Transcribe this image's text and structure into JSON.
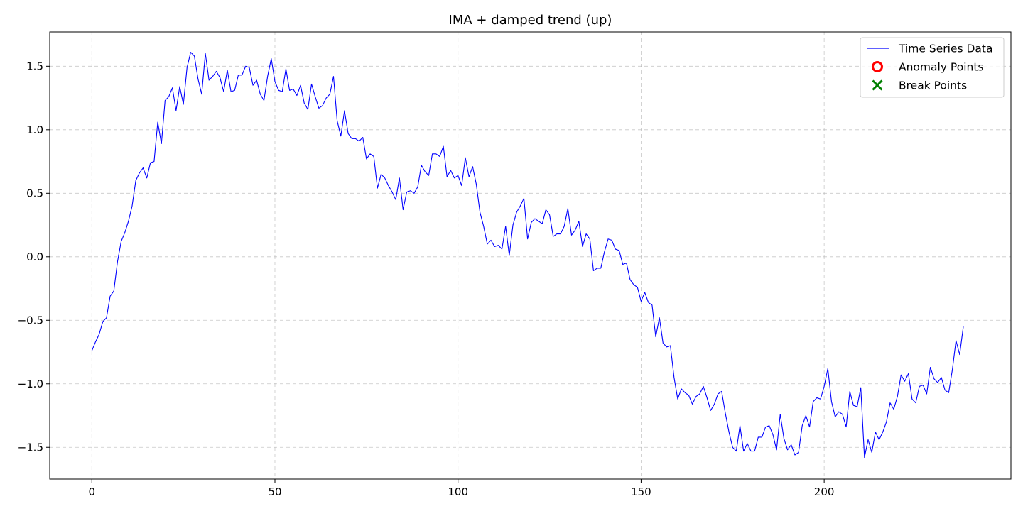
{
  "chart_data": {
    "type": "line",
    "title": "IMA + damped trend (up)",
    "xlabel": "",
    "ylabel": "",
    "xlim": [
      -11.5,
      251
    ],
    "ylim": [
      -1.75,
      1.77
    ],
    "xticks": [
      0,
      50,
      100,
      150,
      200
    ],
    "xtick_labels": [
      "0",
      "50",
      "100",
      "150",
      "200"
    ],
    "yticks": [
      -1.5,
      -1.0,
      -0.5,
      0.0,
      0.5,
      1.0,
      1.5
    ],
    "ytick_labels": [
      "−1.5",
      "−1.0",
      "−0.5",
      "0.0",
      "0.5",
      "1.0",
      "1.5"
    ],
    "grid": true,
    "legend": {
      "position": "upper right",
      "entries": [
        {
          "label": "Time Series Data",
          "marker": "line",
          "color": "#0000ff"
        },
        {
          "label": "Anomaly Points",
          "marker": "circle",
          "color": "#ff0000"
        },
        {
          "label": "Break Points",
          "marker": "x",
          "color": "#008000"
        }
      ]
    },
    "series": [
      {
        "name": "Time Series Data",
        "color": "#0000ff",
        "x_start": 0,
        "x_step": 1,
        "values": [
          -0.74,
          -0.67,
          -0.61,
          -0.51,
          -0.48,
          -0.31,
          -0.27,
          -0.04,
          0.12,
          0.19,
          0.28,
          0.4,
          0.6,
          0.66,
          0.7,
          0.62,
          0.74,
          0.75,
          1.06,
          0.89,
          1.23,
          1.26,
          1.33,
          1.15,
          1.34,
          1.2,
          1.49,
          1.61,
          1.58,
          1.4,
          1.28,
          1.6,
          1.39,
          1.42,
          1.46,
          1.41,
          1.3,
          1.47,
          1.3,
          1.31,
          1.43,
          1.43,
          1.5,
          1.49,
          1.35,
          1.39,
          1.28,
          1.23,
          1.42,
          1.56,
          1.38,
          1.31,
          1.3,
          1.48,
          1.31,
          1.32,
          1.27,
          1.35,
          1.21,
          1.16,
          1.36,
          1.26,
          1.17,
          1.19,
          1.25,
          1.28,
          1.42,
          1.07,
          0.95,
          1.15,
          0.97,
          0.93,
          0.93,
          0.91,
          0.94,
          0.77,
          0.81,
          0.79,
          0.54,
          0.65,
          0.62,
          0.56,
          0.51,
          0.45,
          0.62,
          0.37,
          0.51,
          0.52,
          0.5,
          0.55,
          0.72,
          0.67,
          0.64,
          0.81,
          0.81,
          0.79,
          0.87,
          0.63,
          0.68,
          0.62,
          0.64,
          0.56,
          0.78,
          0.63,
          0.71,
          0.57,
          0.35,
          0.24,
          0.1,
          0.13,
          0.08,
          0.09,
          0.06,
          0.24,
          0.01,
          0.25,
          0.35,
          0.4,
          0.46,
          0.14,
          0.27,
          0.3,
          0.28,
          0.26,
          0.37,
          0.33,
          0.16,
          0.18,
          0.18,
          0.24,
          0.38,
          0.17,
          0.21,
          0.28,
          0.08,
          0.18,
          0.14,
          -0.11,
          -0.09,
          -0.09,
          0.04,
          0.14,
          0.13,
          0.06,
          0.05,
          -0.06,
          -0.05,
          -0.18,
          -0.22,
          -0.24,
          -0.35,
          -0.28,
          -0.36,
          -0.38,
          -0.63,
          -0.48,
          -0.68,
          -0.71,
          -0.7,
          -0.95,
          -1.12,
          -1.04,
          -1.07,
          -1.09,
          -1.16,
          -1.1,
          -1.08,
          -1.02,
          -1.11,
          -1.21,
          -1.16,
          -1.08,
          -1.06,
          -1.23,
          -1.38,
          -1.5,
          -1.53,
          -1.33,
          -1.53,
          -1.47,
          -1.53,
          -1.53,
          -1.42,
          -1.42,
          -1.34,
          -1.33,
          -1.4,
          -1.52,
          -1.24,
          -1.43,
          -1.52,
          -1.48,
          -1.56,
          -1.54,
          -1.33,
          -1.25,
          -1.34,
          -1.14,
          -1.11,
          -1.12,
          -1.02,
          -0.88,
          -1.14,
          -1.26,
          -1.22,
          -1.24,
          -1.34,
          -1.06,
          -1.17,
          -1.18,
          -1.03,
          -1.58,
          -1.44,
          -1.54,
          -1.38,
          -1.44,
          -1.38,
          -1.3,
          -1.15,
          -1.2,
          -1.1,
          -0.93,
          -0.98,
          -0.92,
          -1.12,
          -1.15,
          -1.02,
          -1.01,
          -1.08,
          -0.87,
          -0.96,
          -0.99,
          -0.95,
          -1.05,
          -1.07,
          -0.89,
          -0.66,
          -0.77,
          -0.55
        ]
      }
    ]
  }
}
